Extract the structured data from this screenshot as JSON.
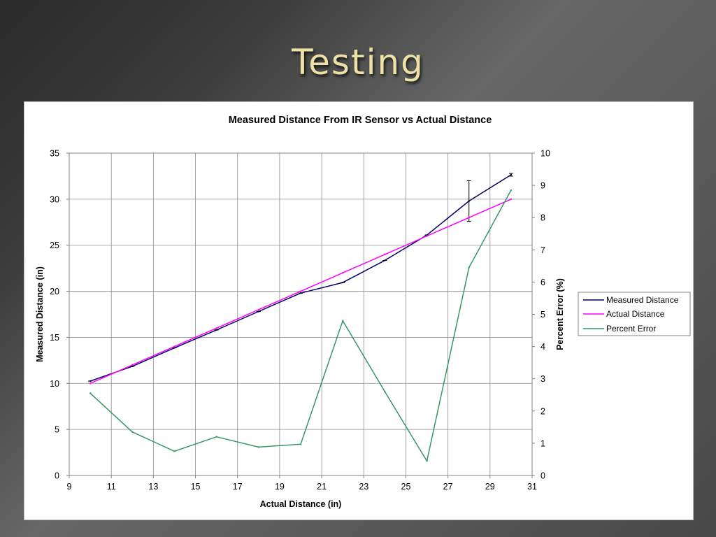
{
  "slide": {
    "title": "Testing"
  },
  "chart_data": {
    "type": "line",
    "title": "Measured Distance From IR Sensor vs Actual Distance",
    "xlabel": "Actual Distance (in)",
    "ylabel": "Measured Distance (in)",
    "y2label": "Percent Error (%)",
    "xlim": [
      9,
      31
    ],
    "ylim": [
      0,
      35
    ],
    "y2lim": [
      0,
      10
    ],
    "xticks": [
      9,
      11,
      13,
      15,
      17,
      19,
      21,
      23,
      25,
      27,
      29,
      31
    ],
    "yticks": [
      0,
      5,
      10,
      15,
      20,
      25,
      30,
      35
    ],
    "y2ticks": [
      0,
      1,
      2,
      3,
      4,
      5,
      6,
      7,
      8,
      9,
      10
    ],
    "grid": true,
    "legend_position": "right",
    "x": [
      10,
      12,
      14,
      16,
      18,
      20,
      22,
      24,
      26,
      28,
      30
    ],
    "series": [
      {
        "name": "Measured Distance",
        "color": "#000066",
        "axis": "left",
        "values": [
          10.25,
          11.85,
          13.85,
          15.8,
          17.8,
          19.8,
          20.95,
          23.35,
          26.1,
          29.8,
          32.65
        ],
        "error": [
          0,
          0,
          0,
          0,
          0,
          0,
          0,
          0,
          0,
          2.2,
          0.15
        ]
      },
      {
        "name": "Actual Distance",
        "color": "#ff00ff",
        "axis": "left",
        "values": [
          10,
          12,
          14,
          16,
          18,
          20,
          22,
          24,
          26,
          28,
          30
        ]
      },
      {
        "name": "Percent Error",
        "color": "#339966",
        "axis": "right",
        "values": [
          2.55,
          1.35,
          0.75,
          1.2,
          0.88,
          0.97,
          4.8,
          2.6,
          0.45,
          6.45,
          8.85
        ]
      }
    ]
  }
}
